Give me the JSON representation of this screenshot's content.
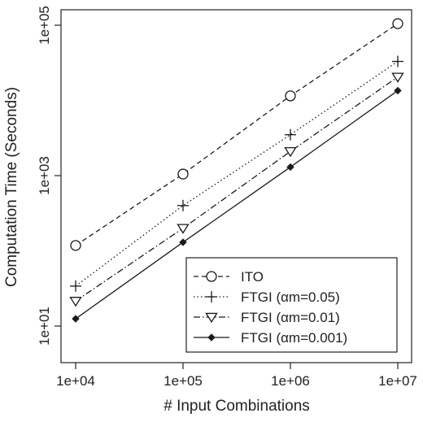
{
  "chart_data": {
    "type": "line",
    "title": "",
    "xlabel": "# Input Combinations",
    "ylabel": "Computation Time (Seconds)",
    "x_scale": "log",
    "y_scale": "log",
    "xlim": [
      10000,
      10000000
    ],
    "ylim": [
      10,
      100000
    ],
    "x": [
      10000,
      100000,
      1000000,
      10000000
    ],
    "x_tick_labels": [
      "1e+04",
      "1e+05",
      "1e+06",
      "1e+07"
    ],
    "y_tick_values": [
      10,
      1000,
      100000
    ],
    "y_tick_labels": [
      "1e+01",
      "1e+03",
      "1e+05"
    ],
    "grid": false,
    "legend_position": "bottom-right",
    "series": [
      {
        "name": "ITO",
        "marker": "circle",
        "line": "dashed",
        "values": [
          118,
          1050,
          11500,
          105000
        ],
        "color": "#1a1a1a"
      },
      {
        "name": "FTGI (αm=0.05)",
        "marker": "plus",
        "line": "dotted",
        "values": [
          34,
          400,
          3500,
          33000
        ],
        "color": "#1a1a1a"
      },
      {
        "name": "FTGI (αm=0.01)",
        "marker": "triangle-down",
        "line": "dashdot",
        "values": [
          21.5,
          200,
          2100,
          20500
        ],
        "color": "#1a1a1a"
      },
      {
        "name": "FTGI (αm=0.001)",
        "marker": "diamond",
        "line": "solid",
        "values": [
          12.5,
          130,
          1300,
          13500
        ],
        "color": "#1a1a1a"
      }
    ]
  }
}
